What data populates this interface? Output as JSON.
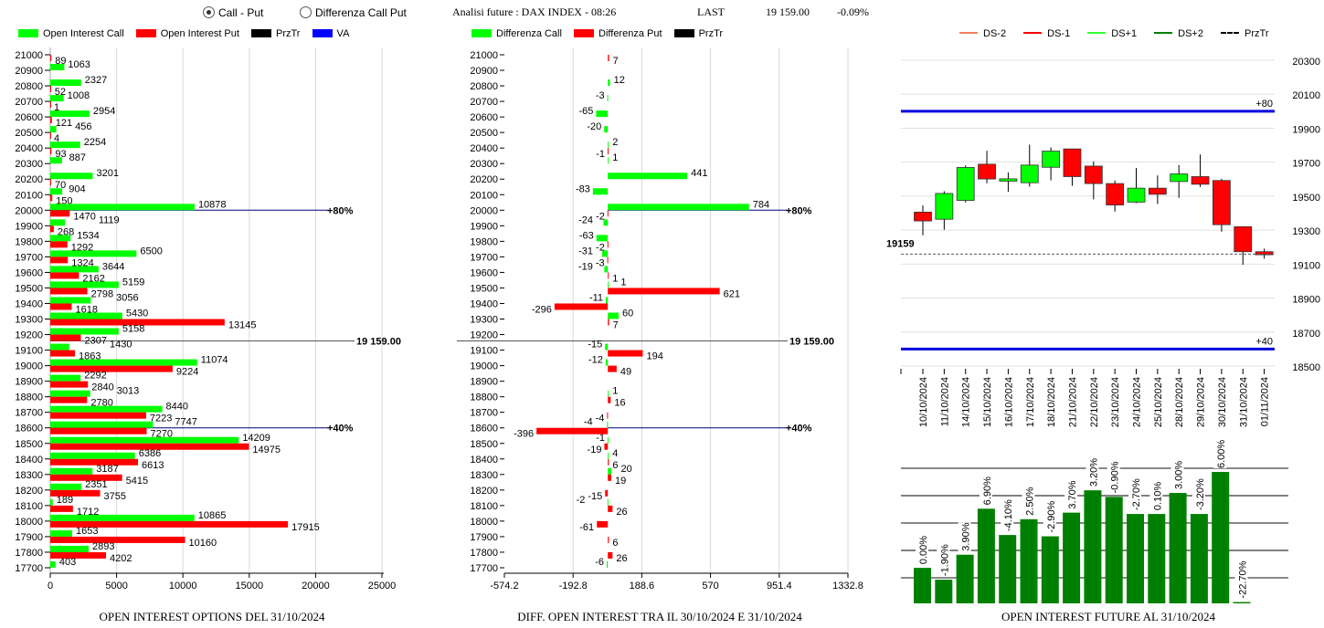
{
  "header": {
    "radio_call_put": "Call - Put",
    "radio_diff": "Differenza Call Put",
    "selected": "Call - Put",
    "analysis": "Analisi future : DAX INDEX - 08:26",
    "last_label": "LAST",
    "last_value": "19 159.00",
    "last_change": "-0.09%"
  },
  "colors": {
    "call": "#00ff00",
    "put": "#ff0000",
    "prztr": "#000000",
    "va": "#0000ff",
    "candle_up": "#00ff00",
    "candle_down": "#ff0000",
    "future_bar": "#008000"
  },
  "legend_left": [
    {
      "label": "Open Interest Call",
      "color": "#00ff00"
    },
    {
      "label": "Open Interest Put",
      "color": "#ff0000"
    },
    {
      "label": "PrzTr",
      "color": "#000000"
    },
    {
      "label": "VA",
      "color": "#0000ff"
    }
  ],
  "legend_mid": [
    {
      "label": "Differenza Call",
      "color": "#00ff00"
    },
    {
      "label": "Differenza Put",
      "color": "#ff0000"
    },
    {
      "label": "PrzTr",
      "color": "#000000"
    }
  ],
  "legend_right": [
    {
      "label": "DS-2",
      "color": "#f08060",
      "style": "solid"
    },
    {
      "label": "DS-1",
      "color": "#ff0000",
      "style": "solid"
    },
    {
      "label": "DS+1",
      "color": "#33ff33",
      "style": "solid"
    },
    {
      "label": "DS+2",
      "color": "#008000",
      "style": "solid"
    },
    {
      "label": "PrzTr",
      "color": "#000000",
      "style": "dashed"
    }
  ],
  "chart_data": [
    {
      "type": "bar",
      "orientation": "horizontal",
      "title": "OPEN INTEREST OPTIONS DEL 31/10/2024",
      "categories": [
        "21000",
        "20900",
        "20800",
        "20700",
        "20600",
        "20500",
        "20400",
        "20300",
        "20200",
        "20100",
        "20000",
        "19900",
        "19800",
        "19700",
        "19600",
        "19500",
        "19400",
        "19300",
        "19200",
        "19100",
        "19000",
        "18900",
        "18800",
        "18700",
        "18600",
        "18500",
        "18400",
        "18300",
        "18200",
        "18100",
        "18000",
        "17900",
        "17800",
        "17700"
      ],
      "series": [
        {
          "name": "Open Interest Call",
          "values": [
            null,
            1063,
            2327,
            1008,
            2954,
            456,
            2254,
            887,
            3201,
            904,
            10878,
            1119,
            1534,
            6500,
            3644,
            5159,
            3056,
            5430,
            5158,
            1430,
            11074,
            2292,
            3013,
            8440,
            7747,
            14209,
            6386,
            3187,
            2351,
            189,
            10865,
            1653,
            2893,
            403
          ]
        },
        {
          "name": "Open Interest Put",
          "values": [
            89,
            null,
            52,
            1,
            121,
            4,
            93,
            null,
            70,
            150,
            1470,
            268,
            1292,
            1324,
            2162,
            2798,
            1618,
            13145,
            2307,
            1863,
            9224,
            2840,
            2780,
            7223,
            7270,
            14975,
            6613,
            5415,
            3755,
            1712,
            17915,
            10160,
            4202,
            null
          ]
        }
      ],
      "xlim": [
        0,
        25000
      ],
      "xticks": [
        "0",
        "5000",
        "10000",
        "15000",
        "20000",
        "25000"
      ],
      "prztr": {
        "value": 19159,
        "label": "19 159.00"
      },
      "va_lines": [
        {
          "value": 20000,
          "label": "+80%"
        },
        {
          "value": 18600,
          "label": "+40%"
        }
      ]
    },
    {
      "type": "bar",
      "orientation": "horizontal",
      "title": "DIFF. OPEN INTEREST TRA IL 30/10/2024 E 31/10/2024",
      "categories": [
        "21000",
        "20900",
        "20800",
        "20700",
        "20600",
        "20500",
        "20400",
        "20300",
        "20200",
        "20100",
        "20000",
        "19900",
        "19800",
        "19700",
        "19600",
        "19500",
        "19400",
        "19300",
        "19200",
        "19100",
        "19000",
        "18900",
        "18800",
        "18700",
        "18600",
        "18500",
        "18400",
        "18300",
        "18200",
        "18100",
        "18000",
        "17900",
        "17800",
        "17700"
      ],
      "series": [
        {
          "name": "Differenza Call",
          "values": [
            null,
            null,
            12,
            -3,
            -65,
            -20,
            2,
            1,
            441,
            -83,
            784,
            -24,
            -63,
            -31,
            -19,
            1,
            -11,
            60,
            null,
            -15,
            -12,
            null,
            1,
            null,
            -4,
            -1,
            4,
            20,
            null,
            -2,
            null,
            null,
            null,
            -6
          ]
        },
        {
          "name": "Differenza Put",
          "values": [
            7,
            null,
            null,
            null,
            null,
            null,
            -1,
            null,
            null,
            null,
            -2,
            null,
            -2,
            -3,
            1,
            621,
            -296,
            7,
            null,
            194,
            49,
            null,
            16,
            -4,
            -396,
            -19,
            6,
            19,
            -15,
            26,
            -61,
            6,
            26,
            null
          ]
        }
      ],
      "xlim": [
        -574.2,
        1332.8
      ],
      "xticks": [
        "-574.2",
        "-192.8",
        "188.6",
        "570",
        "951.4",
        "1332.8"
      ],
      "prztr": {
        "value": 19159,
        "label": "19 159.00"
      },
      "va_lines": [
        {
          "value": 20000,
          "label": "+80%"
        },
        {
          "value": 18600,
          "label": "+40%"
        }
      ]
    },
    {
      "type": "candlestick",
      "dates": [
        "10/10/2024",
        "11/10/2024",
        "14/10/2024",
        "15/10/2024",
        "16/10/2024",
        "17/10/2024",
        "18/10/2024",
        "21/10/2024",
        "22/10/2024",
        "23/10/2024",
        "24/10/2024",
        "25/10/2024",
        "28/10/2024",
        "29/10/2024",
        "30/10/2024",
        "31/10/2024",
        "01/11/2024"
      ],
      "ohlc": [
        [
          19406,
          19445,
          19270,
          19354
        ],
        [
          19364,
          19529,
          19302,
          19516
        ],
        [
          19475,
          19681,
          19463,
          19669
        ],
        [
          19688,
          19767,
          19576,
          19601
        ],
        [
          19588,
          19640,
          19525,
          19602
        ],
        [
          19579,
          19803,
          19556,
          19683
        ],
        [
          19670,
          19787,
          19593,
          19765
        ],
        [
          19778,
          19778,
          19561,
          19615
        ],
        [
          19677,
          19704,
          19481,
          19574
        ],
        [
          19574,
          19592,
          19409,
          19448
        ],
        [
          19465,
          19665,
          19459,
          19547
        ],
        [
          19547,
          19622,
          19454,
          19511
        ],
        [
          19586,
          19683,
          19490,
          19631
        ],
        [
          19615,
          19745,
          19554,
          19570
        ],
        [
          19592,
          19602,
          19291,
          19332
        ],
        [
          19320,
          19320,
          19096,
          19173
        ],
        [
          19173,
          19191,
          19132,
          19155
        ]
      ],
      "ylim": [
        18500,
        20300
      ],
      "yticks": [
        "20300",
        "20100",
        "19900",
        "19700",
        "19500",
        "19300",
        "19100",
        "18900",
        "18700",
        "18500"
      ],
      "prztr": {
        "value": 19159,
        "label": "19159"
      },
      "va_lines": [
        {
          "value": 20000,
          "label": "+80"
        },
        {
          "value": 18600,
          "label": "+40"
        }
      ]
    },
    {
      "type": "bar",
      "title": "OPEN INTEREST FUTURE AL 31/10/2024",
      "labels": [
        "0.00%",
        "-1.90%",
        "3.90%",
        "6.90%",
        "-4.10%",
        "2.50%",
        "-2.90%",
        "3.70%",
        "3.20%",
        "-0.90%",
        "-2.70%",
        "0.10%",
        "3.00%",
        "-3.20%",
        "6.00%",
        "-22.70%"
      ],
      "values": [
        27,
        18,
        37,
        72,
        52,
        64,
        51,
        69,
        86,
        81,
        68,
        68,
        84,
        68,
        100,
        1
      ],
      "ylim": [
        0,
        100
      ],
      "ylabel": ""
    }
  ]
}
